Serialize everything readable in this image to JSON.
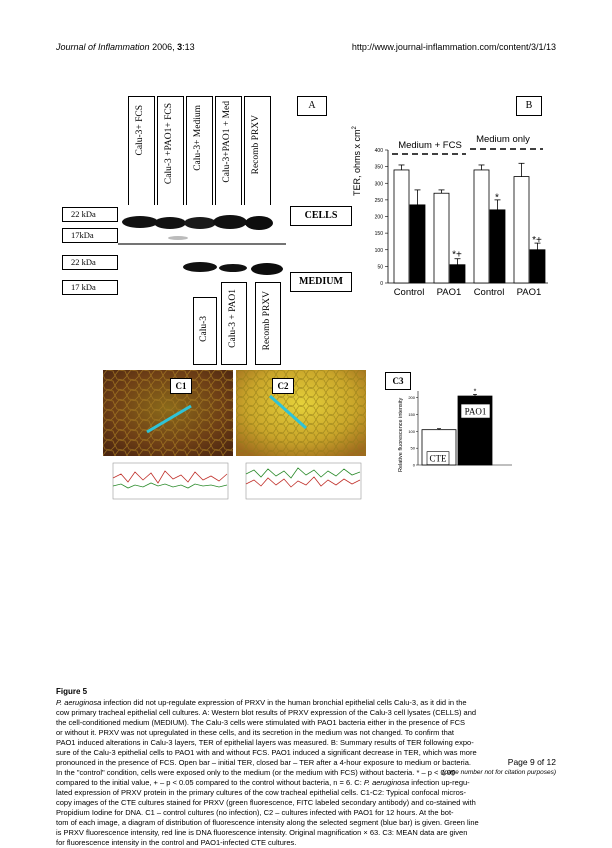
{
  "header": {
    "journal": "Journal of Inflammation",
    "year_vol": "2006, ",
    "vol_issue": "3",
    "pages": ":13",
    "url": "http://www.journal-inflammation.com/content/3/1/13"
  },
  "panel_a": {
    "label": "A",
    "lanes_cells": [
      "Calu-3+ FCS",
      "Calu-3 +PAO1+ FCS",
      "Calu-3+ Medium",
      "Calu-3+PAO1 + Med",
      "Recomb PRXV"
    ],
    "lanes_medium": [
      "Calu-3",
      "Calu-3 + PAO1",
      "Recomb PRXV"
    ],
    "kda_markers": [
      "22 kDa",
      "17kDa",
      "22 kDa",
      "17 kDa"
    ],
    "cells_label": "CELLS",
    "medium_label": "MEDIUM"
  },
  "panel_b": {
    "label": "B",
    "ylabel": "TER, ohms x cm",
    "ylabel_sup": "2",
    "group_labels": [
      "Medium + FCS",
      "Medium only"
    ],
    "x_labels": [
      "Control",
      "PAO1",
      "Control",
      "PAO1"
    ],
    "y_ticks": [
      "0",
      "50",
      "100",
      "150",
      "200",
      "250",
      "300",
      "350",
      "400"
    ],
    "annotations": [
      "*+",
      "*",
      "*+"
    ]
  },
  "panel_c": {
    "c1_label": "C1",
    "c2_label": "C2",
    "c3_label": "C3",
    "c3_ylabel": "Relative fluorescence intensity",
    "c3_ticks": [
      "0",
      "50",
      "100",
      "150",
      "200"
    ],
    "c3_bar_labels": [
      "CTE",
      "PAO1"
    ],
    "c3_star": "*"
  },
  "chart_data": [
    {
      "type": "bar",
      "title": "",
      "ylabel": "TER, ohms x cm2",
      "ylim": [
        0,
        400
      ],
      "categories": [
        "Control",
        "PAO1",
        "Control",
        "PAO1"
      ],
      "series": [
        {
          "name": "initial TER",
          "values": [
            340,
            270,
            340,
            320
          ],
          "color": "#ffffff"
        },
        {
          "name": "TER after a 4-hour exposure",
          "values": [
            235,
            55,
            220,
            100
          ],
          "color": "#000000"
        }
      ]
    },
    {
      "type": "bar",
      "title": "",
      "ylabel": "Relative fluorescence intensity",
      "ylim": [
        0,
        220
      ],
      "categories": [
        "CTE",
        "PAO1"
      ],
      "values": [
        105,
        205
      ]
    }
  ],
  "caption": {
    "figure_title": "Figure 5",
    "lines": [
      {
        "i": "P. aeruginosa",
        "t": " infection did not up-regulate expression of PRXV in the human bronchial epithelial cells Calu-3, as it did in the"
      },
      {
        "t": "cow primary tracheal epithelial cell cultures. A: Western blot results of PRXV expression of the Calu-3 cell lysates (CELLS) and"
      },
      {
        "t": "the cell-conditioned medium (MEDIUM). The Calu-3 cells were stimulated with PAO1 bacteria either in the presence of FCS"
      },
      {
        "t": "or without it. PRXV was not upregulated in these cells, and its secretion in the medium was not changed. To confirm that"
      },
      {
        "t": "PAO1 induced alterations in Calu-3 layers, TER of epithelial layers was measured. B: Summary results of TER following expo-"
      },
      {
        "t": "sure of the Calu-3 epithelial cells to PAO1 with and without FCS. PAO1 induced a significant decrease in TER, which was more"
      },
      {
        "t": "pronounced in the presence of FCS. Open bar – initial TER, closed bar – TER after a 4-hour exposure to medium or bacteria."
      },
      {
        "t": "In the \"control\" condition, cells were exposed only to the medium (or the medium with FCS) without bacteria. * – p < 0.05"
      },
      {
        "t": "compared to the initial value, + – p < 0.05 compared to the control without bacteria, n = 6. C: ",
        "i": "P. aeruginosa",
        "t2": " infection up-regu-"
      },
      {
        "t": "lated expression of PRXV protein in the primary cultures of the cow tracheal epithelial cells. C1-C2: Typical confocal micros-"
      },
      {
        "t": "copy images of the CTE cultures stained for PRXV (green fluorescence, FITC labeled secondary antibody) and co-stained with"
      },
      {
        "t": "Propidium Iodine for DNA. C1 – control cultures (no infection), C2 – cultures infected with PAO1 for 12 hours. At the bot-"
      },
      {
        "t": "tom of each image, a diagram of distribution of fluorescence intensity along the selected segment (blue bar) is given. Green line"
      },
      {
        "t": "is PRXV fluorescence intensity, red line is DNA fluorescence intensity. Original magnification × 63. C3: MEAN data are given"
      },
      {
        "t": "for fluorescence intensity in the control and PAO1-infected CTE cultures."
      }
    ]
  },
  "footer": {
    "page": "Page 9 of 12",
    "note": "(page number not for citation purposes)"
  }
}
